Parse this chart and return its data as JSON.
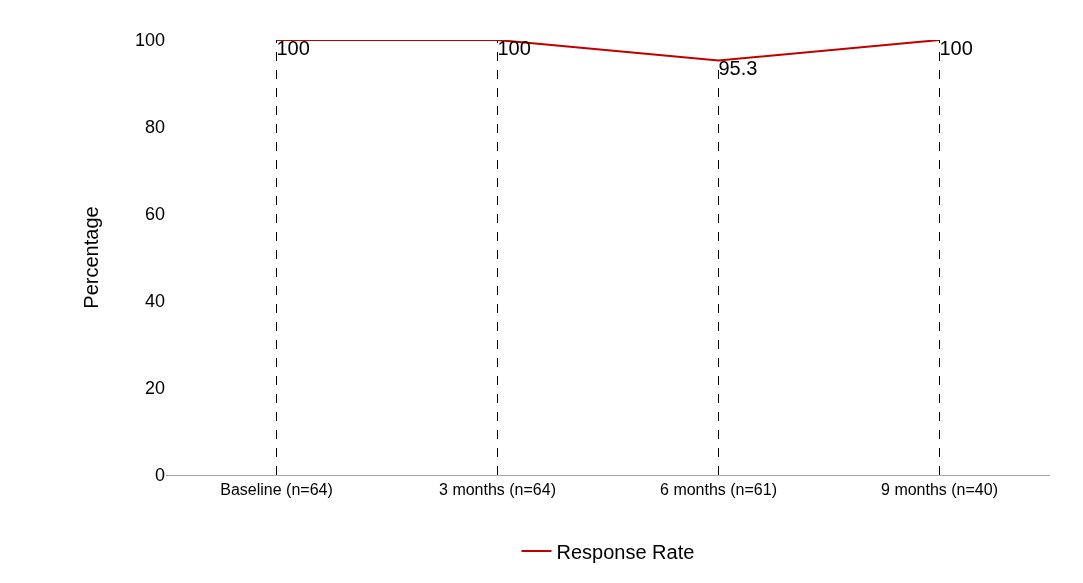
{
  "chart_data": {
    "type": "line",
    "ylabel": "Percentage",
    "categories": [
      "Baseline (n=64)",
      "3 months (n=64)",
      "6 months (n=61)",
      "9 months (n=40)"
    ],
    "series": [
      {
        "name": "Response Rate",
        "color": "#c00000",
        "values": [
          100,
          100,
          95.3,
          100
        ]
      }
    ],
    "ylim": [
      0,
      100
    ],
    "yticks": [
      0,
      20,
      40,
      60,
      80,
      100
    ],
    "grid": false,
    "legend": "bottom",
    "marker": "none",
    "line_style": "solid",
    "data_labels": true,
    "ref_lines": [
      {
        "axis": "x",
        "value": "Baseline (n=64)",
        "color": "#000000",
        "line_style": "dashed"
      },
      {
        "axis": "x",
        "value": "3 months (n=64)",
        "color": "#000000",
        "line_style": "dashed"
      },
      {
        "axis": "x",
        "value": "6 months (n=61)",
        "color": "#000000",
        "line_style": "dashed"
      },
      {
        "axis": "x",
        "value": "9 months (n=40)",
        "color": "#000000",
        "line_style": "dashed"
      }
    ]
  }
}
